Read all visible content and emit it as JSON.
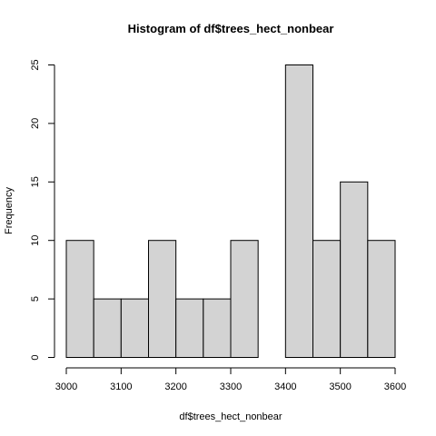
{
  "chart_data": {
    "type": "bar",
    "title": "Histogram of df$trees_hect_nonbear",
    "xlabel": "df$trees_hect_nonbear",
    "ylabel": "Frequency",
    "bins": [
      {
        "x0": 3000,
        "x1": 3050,
        "count": 10
      },
      {
        "x0": 3050,
        "x1": 3100,
        "count": 5
      },
      {
        "x0": 3100,
        "x1": 3150,
        "count": 5
      },
      {
        "x0": 3150,
        "x1": 3200,
        "count": 10
      },
      {
        "x0": 3200,
        "x1": 3250,
        "count": 5
      },
      {
        "x0": 3250,
        "x1": 3300,
        "count": 5
      },
      {
        "x0": 3300,
        "x1": 3350,
        "count": 10
      },
      {
        "x0": 3350,
        "x1": 3400,
        "count": 0
      },
      {
        "x0": 3400,
        "x1": 3450,
        "count": 25
      },
      {
        "x0": 3450,
        "x1": 3500,
        "count": 10
      },
      {
        "x0": 3500,
        "x1": 3550,
        "count": 15
      },
      {
        "x0": 3550,
        "x1": 3600,
        "count": 10
      }
    ],
    "xlim": [
      3000,
      3600
    ],
    "ylim": [
      0,
      25
    ],
    "xticks": [
      "3000",
      "3100",
      "3200",
      "3300",
      "3400",
      "3500",
      "3600"
    ],
    "yticks": [
      "0",
      "5",
      "10",
      "15",
      "20",
      "25"
    ],
    "grid": false,
    "colors": {
      "bar_fill": "#d3d3d3",
      "bar_stroke": "#000000"
    }
  }
}
